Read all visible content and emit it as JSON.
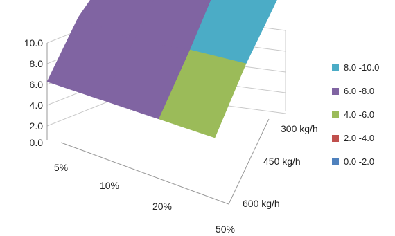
{
  "chart_data": {
    "type": "surface",
    "title": "",
    "z_ticks": [
      "10.0",
      "8.0",
      "6.0",
      "4.0",
      "2.0",
      "0.0"
    ],
    "z_range": [
      0,
      10
    ],
    "x_categories": [
      "5%",
      "10%",
      "20%",
      "50%"
    ],
    "y_categories": [
      "300 kg/h",
      "450 kg/h",
      "600 kg/h"
    ],
    "values": [
      [
        7.0,
        8.0,
        9.5,
        8.5
      ],
      [
        7.5,
        6.5,
        7.0,
        7.0
      ],
      [
        6.0,
        5.5,
        5.0,
        4.5
      ]
    ],
    "grid": true,
    "legend_position": "right",
    "legend": [
      {
        "label": "8.0 -10.0",
        "color": "#4bacc6"
      },
      {
        "label": "6.0 -8.0",
        "color": "#8064a2"
      },
      {
        "label": "4.0 -6.0",
        "color": "#9bbb59"
      },
      {
        "label": "2.0 -4.0",
        "color": "#c0504d"
      },
      {
        "label": "0.0 -2.0",
        "color": "#4f81bd"
      }
    ]
  }
}
